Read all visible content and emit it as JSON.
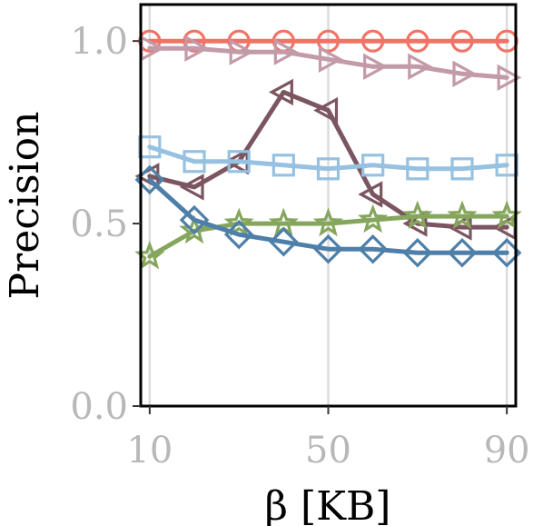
{
  "chart_data": {
    "type": "line",
    "xlabel": "β [KB]",
    "ylabel": "Precision",
    "xlim": [
      8,
      92
    ],
    "ylim": [
      0,
      1.1
    ],
    "xticks": [
      10,
      50,
      90
    ],
    "yticks": [
      0.0,
      0.5,
      1.0
    ],
    "xtick_labels": [
      "10",
      "50",
      "90"
    ],
    "ytick_labels": [
      "0.0",
      "0.5",
      "1.0"
    ],
    "grid": "vertical",
    "x": [
      10,
      20,
      30,
      40,
      50,
      60,
      70,
      80,
      90
    ],
    "series": [
      {
        "color": "#f07366",
        "marker": "circle",
        "values": [
          1.0,
          1.0,
          1.0,
          1.0,
          1.0,
          1.0,
          1.0,
          1.0,
          1.0
        ]
      },
      {
        "color": "#c29aa8",
        "marker": "triangle-right",
        "values": [
          0.98,
          0.98,
          0.97,
          0.97,
          0.95,
          0.93,
          0.93,
          0.91,
          0.9
        ]
      },
      {
        "color": "#7b5560",
        "marker": "triangle-left",
        "values": [
          0.63,
          0.6,
          0.67,
          0.86,
          0.81,
          0.58,
          0.5,
          0.49,
          0.49
        ]
      },
      {
        "color": "#96c1e0",
        "marker": "square",
        "values": [
          0.71,
          0.67,
          0.67,
          0.66,
          0.65,
          0.66,
          0.65,
          0.65,
          0.66
        ]
      },
      {
        "color": "#85a65c",
        "marker": "star",
        "values": [
          0.41,
          0.48,
          0.5,
          0.5,
          0.5,
          0.51,
          0.52,
          0.52,
          0.52
        ]
      },
      {
        "color": "#4d7fa8",
        "marker": "diamond",
        "values": [
          0.62,
          0.51,
          0.47,
          0.45,
          0.43,
          0.43,
          0.42,
          0.42,
          0.42
        ]
      }
    ]
  }
}
